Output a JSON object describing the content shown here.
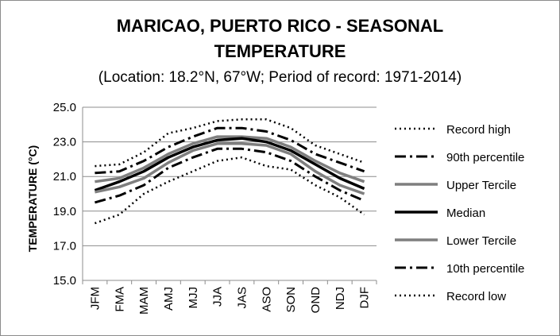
{
  "chart_data": {
    "type": "line",
    "title_line1": "MARICAO, PUERTO RICO - SEASONAL",
    "title_line2": "TEMPERATURE",
    "subtitle": "(Location: 18.2°N, 67°W; Period of record: 1971-2014)",
    "ylabel": "TEMPERATURE (°C)",
    "xlabel": "",
    "ylim": [
      15.0,
      25.0
    ],
    "yticks": [
      "15.0",
      "17.0",
      "19.0",
      "21.0",
      "23.0",
      "25.0"
    ],
    "categories": [
      "JFM",
      "FMA",
      "MAM",
      "AMJ",
      "MJJ",
      "JJA",
      "JAS",
      "ASO",
      "SON",
      "OND",
      "NDJ",
      "DJF"
    ],
    "grid": true,
    "legend_position": "right",
    "series": [
      {
        "name": "Record high",
        "style": "dotted",
        "color": "#000000",
        "values": [
          21.6,
          21.7,
          22.4,
          23.5,
          23.8,
          24.2,
          24.3,
          24.3,
          23.8,
          22.8,
          22.3,
          21.8
        ]
      },
      {
        "name": "90th percentile",
        "style": "dashdot",
        "color": "#000000",
        "values": [
          21.2,
          21.3,
          21.9,
          22.7,
          23.3,
          23.8,
          23.8,
          23.6,
          23.1,
          22.3,
          21.8,
          21.3
        ]
      },
      {
        "name": "Upper Tercile",
        "style": "solid",
        "color": "#7f7f7f",
        "values": [
          20.7,
          20.9,
          21.5,
          22.3,
          22.9,
          23.3,
          23.3,
          23.2,
          22.7,
          21.9,
          21.2,
          20.7
        ]
      },
      {
        "name": "Median",
        "style": "solid-bold",
        "color": "#000000",
        "values": [
          20.2,
          20.7,
          21.3,
          22.1,
          22.7,
          23.1,
          23.2,
          23.0,
          22.5,
          21.7,
          20.9,
          20.3
        ]
      },
      {
        "name": "Lower Tercile",
        "style": "solid",
        "color": "#7f7f7f",
        "values": [
          20.1,
          20.4,
          20.9,
          21.8,
          22.5,
          22.9,
          22.9,
          22.8,
          22.3,
          21.3,
          20.5,
          20.0
        ]
      },
      {
        "name": "10th percentile",
        "style": "dashdot",
        "color": "#000000",
        "values": [
          19.5,
          19.9,
          20.5,
          21.5,
          22.1,
          22.6,
          22.6,
          22.4,
          21.9,
          21.0,
          20.2,
          19.6
        ]
      },
      {
        "name": "Record low",
        "style": "dotted",
        "color": "#000000",
        "values": [
          18.3,
          18.8,
          20.0,
          20.7,
          21.3,
          21.9,
          22.1,
          21.6,
          21.4,
          20.5,
          19.8,
          18.8
        ]
      }
    ]
  }
}
